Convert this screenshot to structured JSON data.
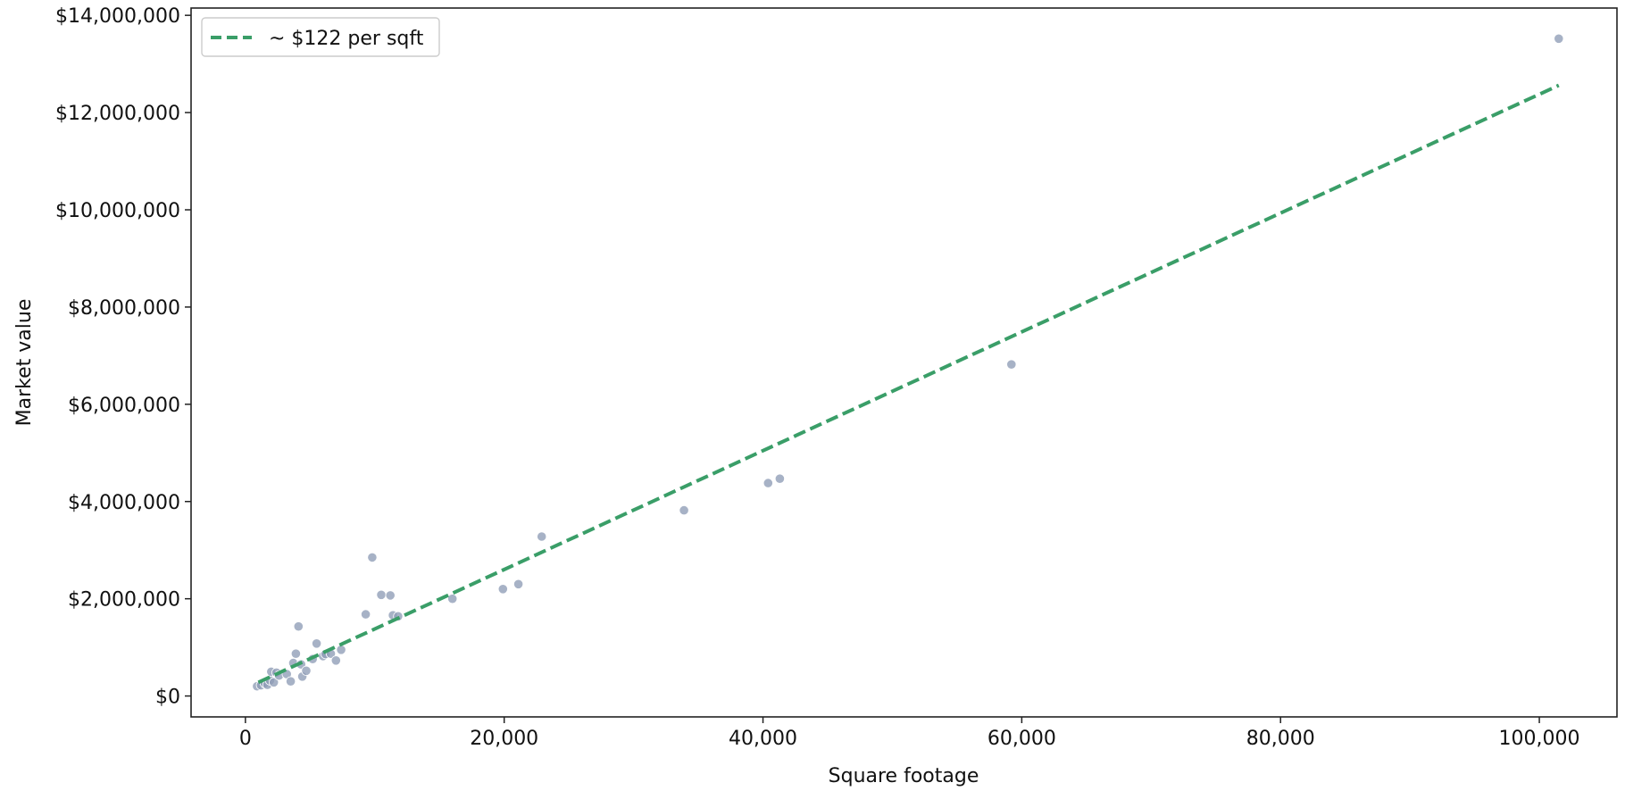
{
  "chart_data": {
    "type": "scatter",
    "xlabel": "Square footage",
    "ylabel": "Market value",
    "xlim": [
      -4200,
      106000
    ],
    "ylim": [
      -430000,
      14150000
    ],
    "x_ticks": [
      0,
      20000,
      40000,
      60000,
      80000,
      100000
    ],
    "x_tick_labels": [
      "0",
      "20,000",
      "40,000",
      "60,000",
      "80,000",
      "100,000"
    ],
    "y_ticks": [
      0,
      2000000,
      4000000,
      6000000,
      8000000,
      10000000,
      12000000,
      14000000
    ],
    "y_tick_labels": [
      "$0",
      "$2,000,000",
      "$4,000,000",
      "$6,000,000",
      "$8,000,000",
      "$10,000,000",
      "$12,000,000",
      "$14,000,000"
    ],
    "grid": false,
    "legend_position": "top-left",
    "legend": [
      {
        "label": "~ $122 per sqft",
        "style": "dashed line",
        "color": "#3a9e68"
      }
    ],
    "colors": {
      "points": "#8e9cb6",
      "trend": "#3a9e68"
    },
    "series": [
      {
        "kind": "points",
        "points": [
          [
            900,
            200000
          ],
          [
            1200,
            220000
          ],
          [
            1500,
            260000
          ],
          [
            1700,
            230000
          ],
          [
            1900,
            320000
          ],
          [
            2000,
            500000
          ],
          [
            2200,
            280000
          ],
          [
            2400,
            480000
          ],
          [
            2600,
            420000
          ],
          [
            3200,
            450000
          ],
          [
            3500,
            300000
          ],
          [
            3700,
            680000
          ],
          [
            3900,
            870000
          ],
          [
            4100,
            1430000
          ],
          [
            4300,
            650000
          ],
          [
            4400,
            400000
          ],
          [
            4700,
            520000
          ],
          [
            5200,
            760000
          ],
          [
            5500,
            1080000
          ],
          [
            6000,
            820000
          ],
          [
            6200,
            860000
          ],
          [
            6600,
            870000
          ],
          [
            7000,
            730000
          ],
          [
            7400,
            950000
          ],
          [
            9300,
            1680000
          ],
          [
            9800,
            2850000
          ],
          [
            10500,
            2080000
          ],
          [
            11200,
            2070000
          ],
          [
            11400,
            1660000
          ],
          [
            11800,
            1640000
          ],
          [
            16000,
            2000000
          ],
          [
            19900,
            2200000
          ],
          [
            21100,
            2300000
          ],
          [
            22900,
            3280000
          ],
          [
            33900,
            3820000
          ],
          [
            40400,
            4380000
          ],
          [
            41300,
            4470000
          ],
          [
            59200,
            6820000
          ],
          [
            101500,
            13520000
          ]
        ]
      },
      {
        "kind": "trend",
        "name": "~ $122 per sqft",
        "x": [
          1000,
          101500
        ],
        "y": [
          280000,
          12560000
        ]
      }
    ]
  }
}
